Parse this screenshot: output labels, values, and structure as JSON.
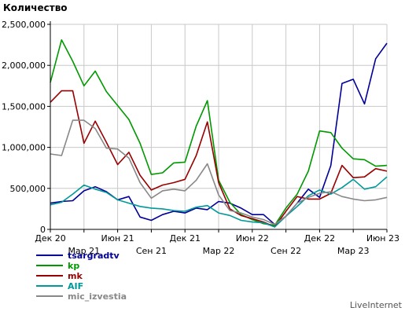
{
  "chart_data": {
    "type": "line",
    "ylabel": "Количество",
    "ylim": [
      0,
      2500000
    ],
    "y_ticks": [
      0,
      500000,
      1000000,
      1500000,
      2000000,
      2500000
    ],
    "y_tick_labels": [
      "0",
      "500,000",
      "1,000,000",
      "1,500,000",
      "2,000,000",
      "2,500,000"
    ],
    "x_count": 43,
    "x_ticks": [
      {
        "index": 0,
        "label": "Дек 20",
        "row": 1
      },
      {
        "index": 3,
        "label": "Мар 21",
        "row": 2
      },
      {
        "index": 6,
        "label": "Июн 21",
        "row": 1
      },
      {
        "index": 9,
        "label": "Сен 21",
        "row": 2
      },
      {
        "index": 12,
        "label": "Дек 21",
        "row": 1
      },
      {
        "index": 15,
        "label": "Мар 22",
        "row": 2
      },
      {
        "index": 18,
        "label": "Июн 22",
        "row": 1
      },
      {
        "index": 21,
        "label": "Сен 22",
        "row": 2
      },
      {
        "index": 24,
        "label": "Дек 22",
        "row": 1
      },
      {
        "index": 27,
        "label": "Мар 23",
        "row": 2
      },
      {
        "index": 30,
        "label": "Июн 23",
        "row": 1
      }
    ],
    "grid": true,
    "legend_position": "bottom-left",
    "series": [
      {
        "name": "tsargradtv",
        "color": "#000099",
        "values": [
          [
            0,
            320000
          ],
          [
            1,
            340000
          ],
          [
            2,
            350000
          ],
          [
            3,
            470000
          ],
          [
            4,
            520000
          ],
          [
            5,
            460000
          ],
          [
            6,
            360000
          ],
          [
            7,
            400000
          ],
          [
            8,
            150000
          ],
          [
            9,
            110000
          ],
          [
            10,
            180000
          ],
          [
            11,
            220000
          ],
          [
            12,
            200000
          ],
          [
            13,
            260000
          ],
          [
            14,
            240000
          ],
          [
            15,
            340000
          ],
          [
            16,
            320000
          ],
          [
            17,
            260000
          ],
          [
            18,
            180000
          ],
          [
            19,
            180000
          ],
          [
            20,
            60000
          ],
          [
            21,
            160000
          ],
          [
            22,
            320000
          ],
          [
            23,
            490000
          ],
          [
            24,
            390000
          ],
          [
            25,
            780000
          ],
          [
            26,
            1780000
          ],
          [
            27,
            1830000
          ],
          [
            28,
            1530000
          ],
          [
            29,
            2080000
          ],
          [
            30,
            2270000
          ]
        ]
      },
      {
        "name": "kp",
        "color": "#009900",
        "values": [
          [
            0,
            1790000
          ],
          [
            1,
            2310000
          ],
          [
            2,
            2050000
          ],
          [
            3,
            1750000
          ],
          [
            4,
            1930000
          ],
          [
            5,
            1680000
          ],
          [
            6,
            1510000
          ],
          [
            7,
            1340000
          ],
          [
            8,
            1050000
          ],
          [
            9,
            670000
          ],
          [
            10,
            690000
          ],
          [
            11,
            810000
          ],
          [
            12,
            820000
          ],
          [
            13,
            1260000
          ],
          [
            14,
            1570000
          ],
          [
            15,
            600000
          ],
          [
            16,
            330000
          ],
          [
            17,
            180000
          ],
          [
            18,
            120000
          ],
          [
            19,
            70000
          ],
          [
            20,
            50000
          ],
          [
            21,
            260000
          ],
          [
            22,
            430000
          ],
          [
            23,
            710000
          ],
          [
            24,
            1200000
          ],
          [
            25,
            1180000
          ],
          [
            26,
            990000
          ],
          [
            27,
            860000
          ],
          [
            28,
            850000
          ],
          [
            29,
            770000
          ],
          [
            30,
            780000
          ]
        ]
      },
      {
        "name": "mk",
        "color": "#990000",
        "values": [
          [
            0,
            1550000
          ],
          [
            1,
            1690000
          ],
          [
            2,
            1690000
          ],
          [
            3,
            1050000
          ],
          [
            4,
            1320000
          ],
          [
            5,
            1060000
          ],
          [
            6,
            790000
          ],
          [
            7,
            940000
          ],
          [
            8,
            660000
          ],
          [
            9,
            480000
          ],
          [
            10,
            540000
          ],
          [
            11,
            570000
          ],
          [
            12,
            610000
          ],
          [
            13,
            900000
          ],
          [
            14,
            1310000
          ],
          [
            15,
            570000
          ],
          [
            16,
            250000
          ],
          [
            17,
            170000
          ],
          [
            18,
            130000
          ],
          [
            19,
            90000
          ],
          [
            20,
            30000
          ],
          [
            21,
            220000
          ],
          [
            22,
            400000
          ],
          [
            23,
            370000
          ],
          [
            24,
            370000
          ],
          [
            25,
            440000
          ],
          [
            26,
            780000
          ],
          [
            27,
            630000
          ],
          [
            28,
            640000
          ],
          [
            29,
            740000
          ],
          [
            30,
            710000
          ]
        ]
      },
      {
        "name": "AIF",
        "color": "#009999",
        "values": [
          [
            0,
            300000
          ],
          [
            1,
            330000
          ],
          [
            2,
            430000
          ],
          [
            3,
            540000
          ],
          [
            4,
            490000
          ],
          [
            5,
            450000
          ],
          [
            6,
            360000
          ],
          [
            7,
            320000
          ],
          [
            8,
            280000
          ],
          [
            9,
            260000
          ],
          [
            10,
            250000
          ],
          [
            11,
            230000
          ],
          [
            12,
            220000
          ],
          [
            13,
            270000
          ],
          [
            14,
            290000
          ],
          [
            15,
            200000
          ],
          [
            16,
            170000
          ],
          [
            17,
            110000
          ],
          [
            18,
            90000
          ],
          [
            19,
            80000
          ],
          [
            20,
            30000
          ],
          [
            21,
            160000
          ],
          [
            22,
            280000
          ],
          [
            23,
            410000
          ],
          [
            24,
            480000
          ],
          [
            25,
            430000
          ],
          [
            26,
            510000
          ],
          [
            27,
            610000
          ],
          [
            28,
            490000
          ],
          [
            29,
            520000
          ],
          [
            30,
            640000
          ]
        ]
      },
      {
        "name": "mic_izvestia",
        "color": "#888888",
        "values": [
          [
            0,
            920000
          ],
          [
            1,
            900000
          ],
          [
            2,
            1330000
          ],
          [
            3,
            1330000
          ],
          [
            4,
            1230000
          ],
          [
            5,
            990000
          ],
          [
            6,
            980000
          ],
          [
            7,
            870000
          ],
          [
            8,
            570000
          ],
          [
            9,
            380000
          ],
          [
            10,
            470000
          ],
          [
            11,
            490000
          ],
          [
            12,
            470000
          ],
          [
            13,
            600000
          ],
          [
            14,
            800000
          ],
          [
            15,
            420000
          ],
          [
            16,
            230000
          ],
          [
            17,
            200000
          ],
          [
            18,
            150000
          ],
          [
            19,
            120000
          ],
          [
            20,
            60000
          ],
          [
            21,
            160000
          ],
          [
            22,
            320000
          ],
          [
            23,
            390000
          ],
          [
            24,
            440000
          ],
          [
            25,
            460000
          ],
          [
            26,
            400000
          ],
          [
            27,
            370000
          ],
          [
            28,
            350000
          ],
          [
            29,
            360000
          ],
          [
            30,
            390000
          ]
        ]
      }
    ]
  },
  "footer": {
    "brand": "LiveInternet"
  }
}
